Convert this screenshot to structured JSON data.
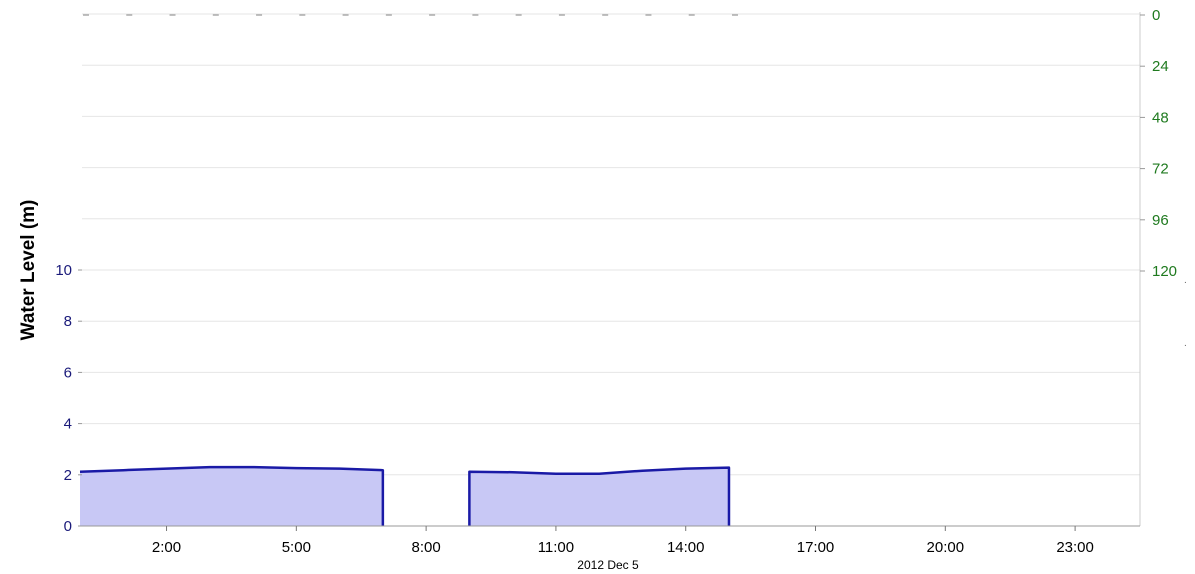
{
  "chart_data": {
    "type": "area",
    "title": "",
    "xlabel": "2012 Dec 5",
    "ylabel": "Water Level (m)",
    "x_domain_hours": [
      0,
      24.5
    ],
    "ylim": [
      0,
      10
    ],
    "left_ticks": [
      "0",
      "2",
      "4",
      "6",
      "8",
      "10"
    ],
    "right_axis": {
      "ticks": [
        "0",
        "24",
        "48",
        "72",
        "96",
        "120"
      ],
      "inverted": true
    },
    "x_ticks": [
      {
        "hour": 2,
        "label": "2:00"
      },
      {
        "hour": 5,
        "label": "5:00"
      },
      {
        "hour": 8,
        "label": "8:00"
      },
      {
        "hour": 11,
        "label": "11:00"
      },
      {
        "hour": 14,
        "label": "14:00"
      },
      {
        "hour": 17,
        "label": "17:00"
      },
      {
        "hour": 20,
        "label": "20:00"
      },
      {
        "hour": 23,
        "label": "23:00"
      }
    ],
    "segments": [
      {
        "points": [
          {
            "hour": 0,
            "value": 2.12
          },
          {
            "hour": 1,
            "value": 2.18
          },
          {
            "hour": 2,
            "value": 2.24
          },
          {
            "hour": 3,
            "value": 2.3
          },
          {
            "hour": 4,
            "value": 2.3
          },
          {
            "hour": 5,
            "value": 2.26
          },
          {
            "hour": 6,
            "value": 2.24
          },
          {
            "hour": 7,
            "value": 2.18
          }
        ]
      },
      {
        "points": [
          {
            "hour": 9,
            "value": 2.12
          },
          {
            "hour": 10,
            "value": 2.1
          },
          {
            "hour": 11,
            "value": 2.04
          },
          {
            "hour": 12,
            "value": 2.04
          },
          {
            "hour": 13,
            "value": 2.16
          },
          {
            "hour": 14,
            "value": 2.24
          },
          {
            "hour": 15,
            "value": 2.28
          }
        ]
      }
    ],
    "colors": {
      "line": "#1a1aa6",
      "fill": "#c8c8f5",
      "left_ticks": "#1a1a7a",
      "right_ticks": "#1f7a1f",
      "ylabel": "#2222cc",
      "grid": "#e6e6e6"
    },
    "grid": true
  }
}
